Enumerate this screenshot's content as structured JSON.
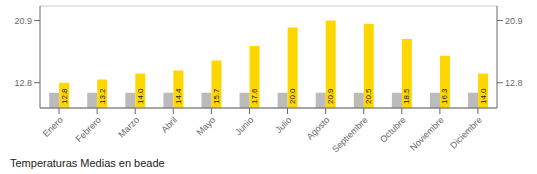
{
  "chart_data": {
    "type": "bar",
    "title": "Temperaturas Medias en beade",
    "categories": [
      "Enero",
      "Febrero",
      "Marzo",
      "Abril",
      "Mayo",
      "Junio",
      "Julio",
      "Agosto",
      "Septiembre",
      "Octubre",
      "Noviembre",
      "Diciembre"
    ],
    "series": [
      {
        "color": "#BBBBBB",
        "values": [
          11.5,
          11.5,
          11.5,
          11.5,
          11.5,
          11.5,
          11.5,
          11.5,
          11.5,
          11.5,
          11.5,
          11.5
        ]
      },
      {
        "color": "#FFD700",
        "values": [
          12.8,
          13.2,
          14.0,
          14.4,
          15.7,
          17.6,
          20.0,
          20.9,
          20.5,
          18.5,
          16.3,
          14.0
        ],
        "value_labels": [
          "12.8",
          "13.2",
          "14.0",
          "14.4",
          "15.7",
          "17.6",
          "20.0",
          "20.9",
          "20.5",
          "18.5",
          "16.3",
          "14.0"
        ],
        "data_labels": true
      }
    ],
    "ylim": [
      9.5,
      22.8
    ],
    "yticks": [
      12.8,
      20.9
    ],
    "y2lim": [
      9.5,
      22.8
    ],
    "y2ticks": [
      12.8,
      20.9
    ],
    "grid": true
  }
}
